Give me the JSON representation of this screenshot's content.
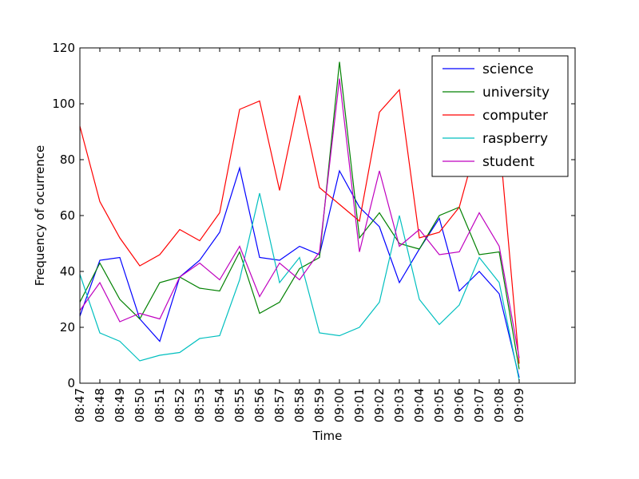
{
  "chart_data": {
    "type": "line",
    "title": "",
    "xlabel": "Time",
    "ylabel": "Frequency of ocurrence",
    "ylim": [
      0,
      120
    ],
    "yticks": [
      0,
      20,
      40,
      60,
      80,
      100,
      120
    ],
    "categories": [
      "08:47",
      "08:48",
      "08:49",
      "08:50",
      "08:51",
      "08:52",
      "08:53",
      "08:54",
      "08:55",
      "08:56",
      "08:57",
      "08:58",
      "08:59",
      "09:00",
      "09:01",
      "09:02",
      "09:03",
      "09:04",
      "09:05",
      "09:06",
      "09:07",
      "09:08",
      "09:09"
    ],
    "grid": false,
    "legend_position": "top-right",
    "series": [
      {
        "name": "science",
        "color": "#0000ff",
        "values": [
          24,
          44,
          45,
          23,
          15,
          38,
          44,
          54,
          77,
          45,
          44,
          49,
          46,
          76,
          63,
          56,
          36,
          48,
          59,
          33,
          40,
          32,
          2
        ]
      },
      {
        "name": "university",
        "color": "#008000",
        "values": [
          29,
          43,
          30,
          23,
          36,
          38,
          34,
          33,
          47,
          25,
          29,
          41,
          45,
          115,
          52,
          61,
          50,
          48,
          60,
          63,
          46,
          47,
          5
        ]
      },
      {
        "name": "computer",
        "color": "#ff0000",
        "values": [
          92,
          65,
          52,
          42,
          46,
          55,
          51,
          61,
          98,
          101,
          69,
          103,
          70,
          64,
          58,
          97,
          105,
          52,
          54,
          63,
          89,
          88,
          7
        ]
      },
      {
        "name": "raspberry",
        "color": "#00bfbf",
        "values": [
          39,
          18,
          15,
          8,
          10,
          11,
          16,
          17,
          37,
          68,
          36,
          45,
          18,
          17,
          20,
          29,
          60,
          30,
          21,
          28,
          45,
          36,
          1
        ]
      },
      {
        "name": "student",
        "color": "#bf00bf",
        "values": [
          26,
          36,
          22,
          25,
          23,
          38,
          43,
          37,
          49,
          31,
          43,
          37,
          47,
          109,
          47,
          76,
          49,
          55,
          46,
          47,
          61,
          49,
          9
        ]
      }
    ]
  }
}
